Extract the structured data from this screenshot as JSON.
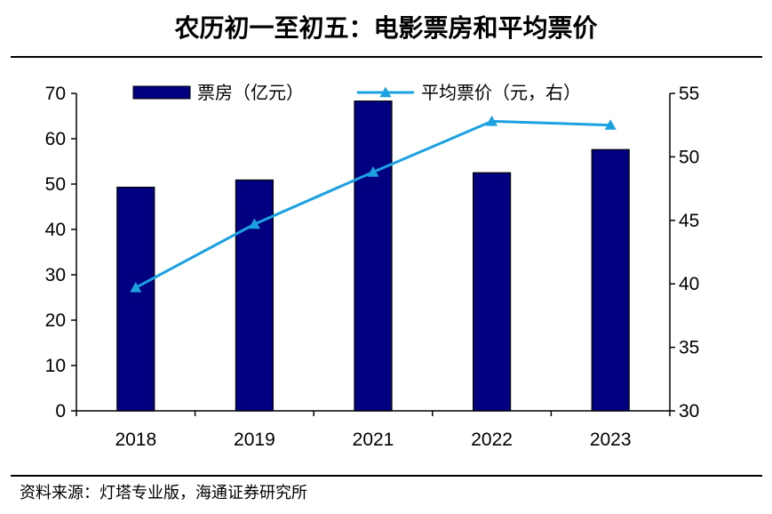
{
  "title": "农历初一至初五：电影票房和平均票价",
  "source": "资料来源：灯塔专业版，海通证券研究所",
  "chart_data": {
    "type": "bar",
    "categories": [
      "2018",
      "2019",
      "2021",
      "2022",
      "2023"
    ],
    "series": [
      {
        "name": "票房（亿元）",
        "type": "bar",
        "axis": "left",
        "values": [
          49.3,
          50.9,
          68.3,
          52.5,
          57.6
        ],
        "color": "#000080"
      },
      {
        "name": "平均票价（元，右）",
        "type": "line",
        "axis": "right",
        "values": [
          39.7,
          44.7,
          48.8,
          52.8,
          52.5
        ],
        "color": "#1BA1E2"
      }
    ],
    "y_left": {
      "ylim": [
        0,
        70
      ],
      "ticks": [
        0,
        10,
        20,
        30,
        40,
        50,
        60,
        70
      ]
    },
    "y_right": {
      "ylim": [
        30,
        55
      ],
      "ticks": [
        30,
        35,
        40,
        45,
        50,
        55
      ]
    },
    "legend": "top-center",
    "grid": false
  }
}
